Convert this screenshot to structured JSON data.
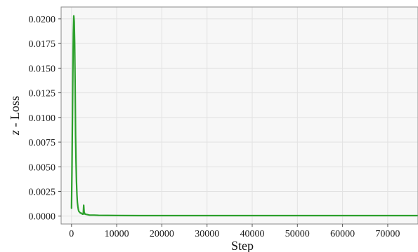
{
  "chart_data": {
    "type": "line",
    "xlabel": "Step",
    "ylabel_italic": "z",
    "ylabel_rest": " - Loss",
    "xlim": [
      -2300,
      76700
    ],
    "ylim": [
      -0.0008,
      0.0212
    ],
    "x_ticks": [
      0,
      10000,
      20000,
      30000,
      40000,
      50000,
      60000,
      70000
    ],
    "x_tick_labels": [
      "0",
      "10000",
      "20000",
      "30000",
      "40000",
      "50000",
      "60000",
      "70000"
    ],
    "y_ticks": [
      0,
      0.0025,
      0.005,
      0.0075,
      0.01,
      0.0125,
      0.015,
      0.0175,
      0.02
    ],
    "y_tick_labels": [
      "0.0000",
      "0.0025",
      "0.0050",
      "0.0075",
      "0.0100",
      "0.0125",
      "0.0150",
      "0.0175",
      "0.0200"
    ],
    "grid": true,
    "legend": "none",
    "colors": {
      "line": "#2ca02c",
      "plot_background": "#f7f7f7",
      "grid": "#e2e2e2",
      "frame": "#8a8a8a"
    },
    "series": [
      {
        "x": [
          0,
          100,
          200,
          300,
          400,
          500,
          600,
          700,
          800,
          900,
          1000,
          1100,
          1200,
          1300,
          1400,
          1500,
          1600,
          1800,
          2000,
          2200,
          2400,
          2600,
          2700,
          2800,
          3000,
          3500,
          4000,
          5000,
          6000,
          8000,
          10000,
          15000,
          20000,
          30000,
          40000,
          50000,
          60000,
          70000,
          76700
        ],
        "y": [
          0.0008,
          0.0045,
          0.0095,
          0.0145,
          0.0185,
          0.0203,
          0.0197,
          0.0175,
          0.0135,
          0.0082,
          0.0055,
          0.0035,
          0.0022,
          0.0014,
          0.001,
          0.0007,
          0.0005,
          0.0004,
          0.0003,
          0.0003,
          0.0002,
          0.0002,
          0.0011,
          0.0004,
          0.0002,
          0.00015,
          0.0001,
          0.0001,
          8e-05,
          7e-05,
          6e-05,
          5e-05,
          5e-05,
          5e-05,
          5e-05,
          5e-05,
          5e-05,
          5e-05,
          5e-05
        ]
      }
    ]
  }
}
